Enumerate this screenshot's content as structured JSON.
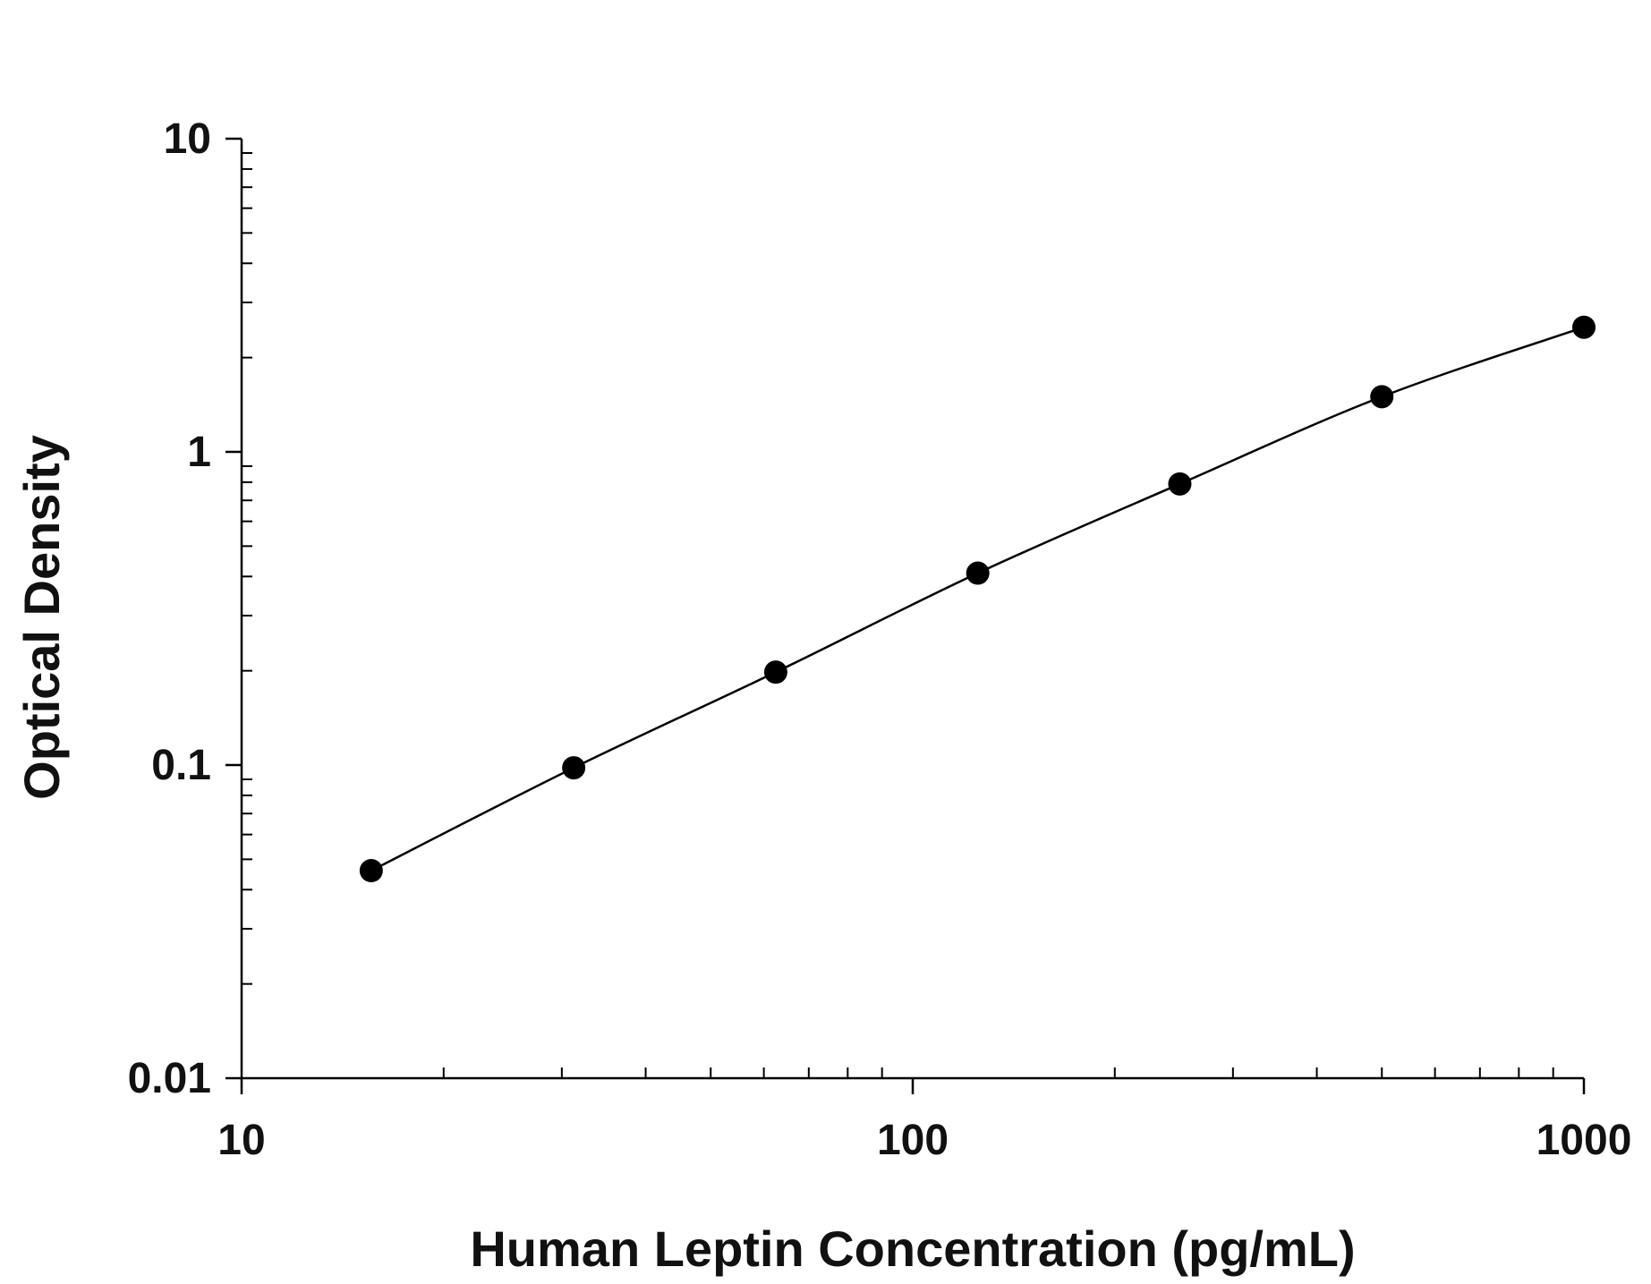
{
  "chart_data": {
    "type": "scatter",
    "title": "",
    "xlabel": "Human Leptin Concentration (pg/mL)",
    "ylabel": "Optical Density",
    "x_scale": "log",
    "y_scale": "log",
    "xlim": [
      10,
      1000
    ],
    "ylim": [
      0.01,
      10
    ],
    "x_ticks": [
      {
        "value": 10,
        "label": "10"
      },
      {
        "value": 100,
        "label": "100"
      },
      {
        "value": 1000,
        "label": "1000"
      }
    ],
    "y_ticks": [
      {
        "value": 0.01,
        "label": "0.01"
      },
      {
        "value": 0.1,
        "label": "0.1"
      },
      {
        "value": 1,
        "label": "1"
      },
      {
        "value": 10,
        "label": "10"
      }
    ],
    "grid": false,
    "legend": "none",
    "series": [
      {
        "x": [
          15.6,
          31.25,
          62.5,
          125,
          250,
          500,
          1000
        ],
        "y": [
          0.046,
          0.098,
          0.198,
          0.41,
          0.79,
          1.5,
          2.5
        ],
        "marker": "filled-circle",
        "fit_line": true,
        "color": "#000000"
      }
    ]
  }
}
